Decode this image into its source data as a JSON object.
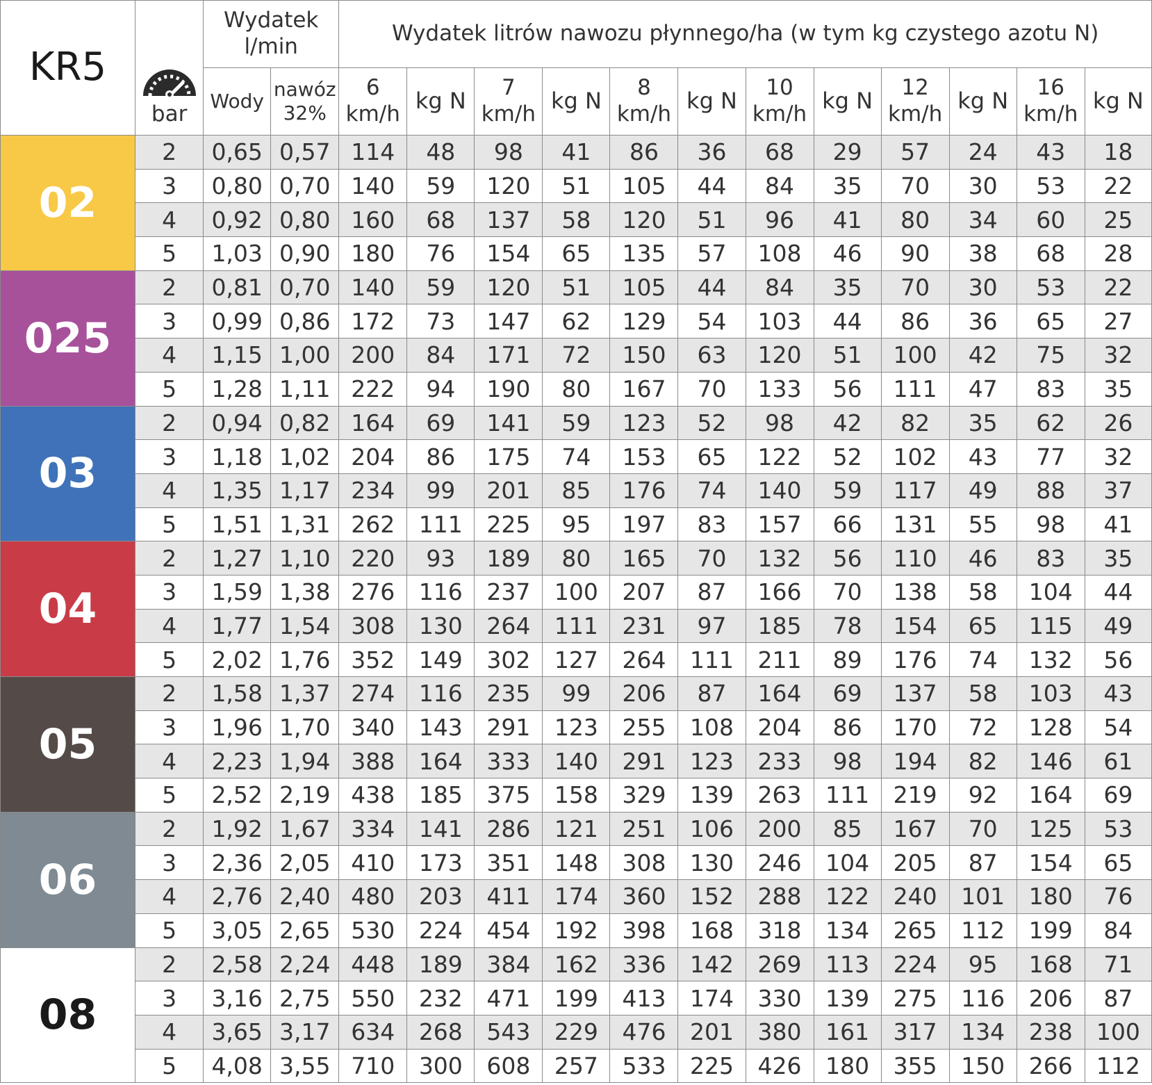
{
  "header": {
    "model": "KR5",
    "bar_label": "bar",
    "flow_title": "Wydatek l/min",
    "flow_title_line1": "Wydatek",
    "flow_title_line2": "l/min",
    "water_label": "Wody",
    "fert_label_line1": "nawóz",
    "fert_label_line2": "32%",
    "main_title": "Wydatek litrów nawozu płynnego/ha (w tym kg czystego azotu N)",
    "kg_label": "kg N",
    "speeds": [
      {
        "value": "6",
        "unit": "km/h"
      },
      {
        "value": "7",
        "unit": "km/h"
      },
      {
        "value": "8",
        "unit": "km/h"
      },
      {
        "value": "10",
        "unit": "km/h"
      },
      {
        "value": "12",
        "unit": "km/h"
      },
      {
        "value": "16",
        "unit": "km/h"
      }
    ],
    "gauge_icon": "speedometer-icon"
  },
  "groups": [
    {
      "nozzle": "02",
      "color": "#f8c947",
      "text_color": "#ffffff",
      "rows": [
        [
          "2",
          "0,65",
          "0,57",
          "114",
          "48",
          "98",
          "41",
          "86",
          "36",
          "68",
          "29",
          "57",
          "24",
          "43",
          "18"
        ],
        [
          "3",
          "0,80",
          "0,70",
          "140",
          "59",
          "120",
          "51",
          "105",
          "44",
          "84",
          "35",
          "70",
          "30",
          "53",
          "22"
        ],
        [
          "4",
          "0,92",
          "0,80",
          "160",
          "68",
          "137",
          "58",
          "120",
          "51",
          "96",
          "41",
          "80",
          "34",
          "60",
          "25"
        ],
        [
          "5",
          "1,03",
          "0,90",
          "180",
          "76",
          "154",
          "65",
          "135",
          "57",
          "108",
          "46",
          "90",
          "38",
          "68",
          "28"
        ]
      ]
    },
    {
      "nozzle": "025",
      "color": "#a8519b",
      "text_color": "#ffffff",
      "rows": [
        [
          "2",
          "0,81",
          "0,70",
          "140",
          "59",
          "120",
          "51",
          "105",
          "44",
          "84",
          "35",
          "70",
          "30",
          "53",
          "22"
        ],
        [
          "3",
          "0,99",
          "0,86",
          "172",
          "73",
          "147",
          "62",
          "129",
          "54",
          "103",
          "44",
          "86",
          "36",
          "65",
          "27"
        ],
        [
          "4",
          "1,15",
          "1,00",
          "200",
          "84",
          "171",
          "72",
          "150",
          "63",
          "120",
          "51",
          "100",
          "42",
          "75",
          "32"
        ],
        [
          "5",
          "1,28",
          "1,11",
          "222",
          "94",
          "190",
          "80",
          "167",
          "70",
          "133",
          "56",
          "111",
          "47",
          "83",
          "35"
        ]
      ]
    },
    {
      "nozzle": "03",
      "color": "#3f72b8",
      "text_color": "#ffffff",
      "rows": [
        [
          "2",
          "0,94",
          "0,82",
          "164",
          "69",
          "141",
          "59",
          "123",
          "52",
          "98",
          "42",
          "82",
          "35",
          "62",
          "26"
        ],
        [
          "3",
          "1,18",
          "1,02",
          "204",
          "86",
          "175",
          "74",
          "153",
          "65",
          "122",
          "52",
          "102",
          "43",
          "77",
          "32"
        ],
        [
          "4",
          "1,35",
          "1,17",
          "234",
          "99",
          "201",
          "85",
          "176",
          "74",
          "140",
          "59",
          "117",
          "49",
          "88",
          "37"
        ],
        [
          "5",
          "1,51",
          "1,31",
          "262",
          "111",
          "225",
          "95",
          "197",
          "83",
          "157",
          "66",
          "131",
          "55",
          "98",
          "41"
        ]
      ]
    },
    {
      "nozzle": "04",
      "color": "#c93c47",
      "text_color": "#ffffff",
      "rows": [
        [
          "2",
          "1,27",
          "1,10",
          "220",
          "93",
          "189",
          "80",
          "165",
          "70",
          "132",
          "56",
          "110",
          "46",
          "83",
          "35"
        ],
        [
          "3",
          "1,59",
          "1,38",
          "276",
          "116",
          "237",
          "100",
          "207",
          "87",
          "166",
          "70",
          "138",
          "58",
          "104",
          "44"
        ],
        [
          "4",
          "1,77",
          "1,54",
          "308",
          "130",
          "264",
          "111",
          "231",
          "97",
          "185",
          "78",
          "154",
          "65",
          "115",
          "49"
        ],
        [
          "5",
          "2,02",
          "1,76",
          "352",
          "149",
          "302",
          "127",
          "264",
          "111",
          "211",
          "89",
          "176",
          "74",
          "132",
          "56"
        ]
      ]
    },
    {
      "nozzle": "05",
      "color": "#544b48",
      "text_color": "#ffffff",
      "rows": [
        [
          "2",
          "1,58",
          "1,37",
          "274",
          "116",
          "235",
          "99",
          "206",
          "87",
          "164",
          "69",
          "137",
          "58",
          "103",
          "43"
        ],
        [
          "3",
          "1,96",
          "1,70",
          "340",
          "143",
          "291",
          "123",
          "255",
          "108",
          "204",
          "86",
          "170",
          "72",
          "128",
          "54"
        ],
        [
          "4",
          "2,23",
          "1,94",
          "388",
          "164",
          "333",
          "140",
          "291",
          "123",
          "233",
          "98",
          "194",
          "82",
          "146",
          "61"
        ],
        [
          "5",
          "2,52",
          "2,19",
          "438",
          "185",
          "375",
          "158",
          "329",
          "139",
          "263",
          "111",
          "219",
          "92",
          "164",
          "69"
        ]
      ]
    },
    {
      "nozzle": "06",
      "color": "#7f8a92",
      "text_color": "#ffffff",
      "rows": [
        [
          "2",
          "1,92",
          "1,67",
          "334",
          "141",
          "286",
          "121",
          "251",
          "106",
          "200",
          "85",
          "167",
          "70",
          "125",
          "53"
        ],
        [
          "3",
          "2,36",
          "2,05",
          "410",
          "173",
          "351",
          "148",
          "308",
          "130",
          "246",
          "104",
          "205",
          "87",
          "154",
          "65"
        ],
        [
          "4",
          "2,76",
          "2,40",
          "480",
          "203",
          "411",
          "174",
          "360",
          "152",
          "288",
          "122",
          "240",
          "101",
          "180",
          "76"
        ],
        [
          "5",
          "3,05",
          "2,65",
          "530",
          "224",
          "454",
          "192",
          "398",
          "168",
          "318",
          "134",
          "265",
          "112",
          "199",
          "84"
        ]
      ]
    },
    {
      "nozzle": "08",
      "color": "#ffffff",
      "text_color": "#1a1a1a",
      "rows": [
        [
          "2",
          "2,58",
          "2,24",
          "448",
          "189",
          "384",
          "162",
          "336",
          "142",
          "269",
          "113",
          "224",
          "95",
          "168",
          "71"
        ],
        [
          "3",
          "3,16",
          "2,75",
          "550",
          "232",
          "471",
          "199",
          "413",
          "174",
          "330",
          "139",
          "275",
          "116",
          "206",
          "87"
        ],
        [
          "4",
          "3,65",
          "3,17",
          "634",
          "268",
          "543",
          "229",
          "476",
          "201",
          "380",
          "161",
          "317",
          "134",
          "238",
          "100"
        ],
        [
          "5",
          "4,08",
          "3,55",
          "710",
          "300",
          "608",
          "257",
          "533",
          "225",
          "426",
          "180",
          "355",
          "150",
          "266",
          "112"
        ]
      ]
    }
  ]
}
